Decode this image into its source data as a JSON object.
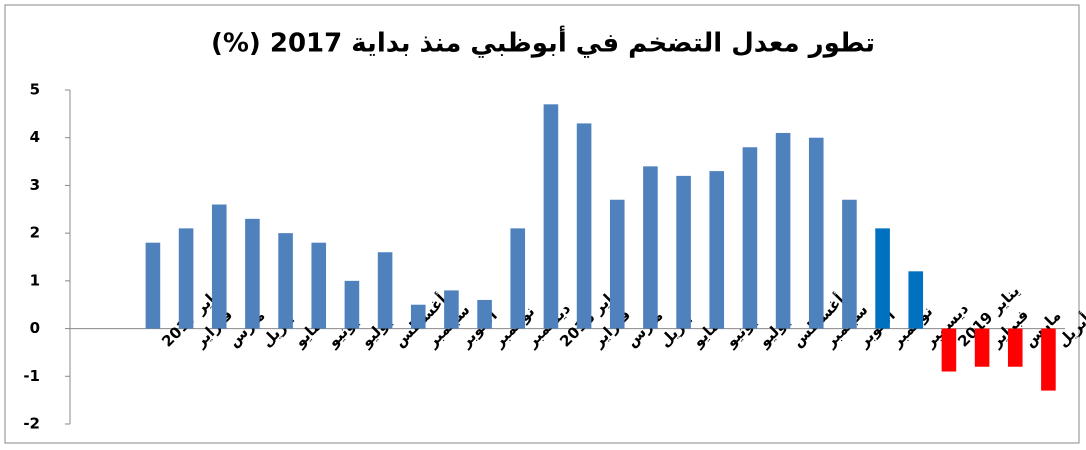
{
  "chart_data": {
    "type": "bar",
    "title": "تطور معدل التضخم في أبوظبي منذ بداية 2017 (%)",
    "categories": [
      "يناير 2017",
      "فبراير",
      "مارس",
      "ابريل",
      "مايو",
      "يونيو",
      "يوليو",
      "أغسطس",
      "سبتمبر",
      "أكتوبر",
      "نوفمبر",
      "ديسمبر",
      "يناير 2018",
      "فبراير",
      "مارس",
      "أبريل",
      "مايو",
      "يونيو",
      "يوليو",
      "أغسطس",
      "سبتمبر",
      "أكتوبر",
      "نوفمبر",
      "ديسمبر",
      "يناير 2019",
      "فبراير",
      "مارس",
      "أبريل"
    ],
    "values": [
      1.8,
      2.1,
      2.6,
      2.3,
      2.0,
      1.8,
      1.0,
      1.6,
      0.5,
      0.8,
      0.6,
      2.1,
      4.7,
      4.3,
      2.7,
      3.4,
      3.2,
      3.3,
      3.8,
      4.1,
      4.0,
      2.7,
      2.1,
      1.2,
      -0.9,
      -0.8,
      -0.8,
      -1.3
    ],
    "colors": [
      "#4f81bd",
      "#4f81bd",
      "#4f81bd",
      "#4f81bd",
      "#4f81bd",
      "#4f81bd",
      "#4f81bd",
      "#4f81bd",
      "#4f81bd",
      "#4f81bd",
      "#4f81bd",
      "#4f81bd",
      "#4f81bd",
      "#4f81bd",
      "#4f81bd",
      "#4f81bd",
      "#4f81bd",
      "#4f81bd",
      "#4f81bd",
      "#4f81bd",
      "#4f81bd",
      "#4f81bd",
      "#0070c0",
      "#0070c0",
      "#ff0000",
      "#ff0000",
      "#ff0000",
      "#ff0000"
    ],
    "ylim": [
      -2,
      5
    ],
    "yticks": [
      -2,
      -1,
      0,
      1,
      2,
      3,
      4,
      5
    ],
    "grid": false
  }
}
